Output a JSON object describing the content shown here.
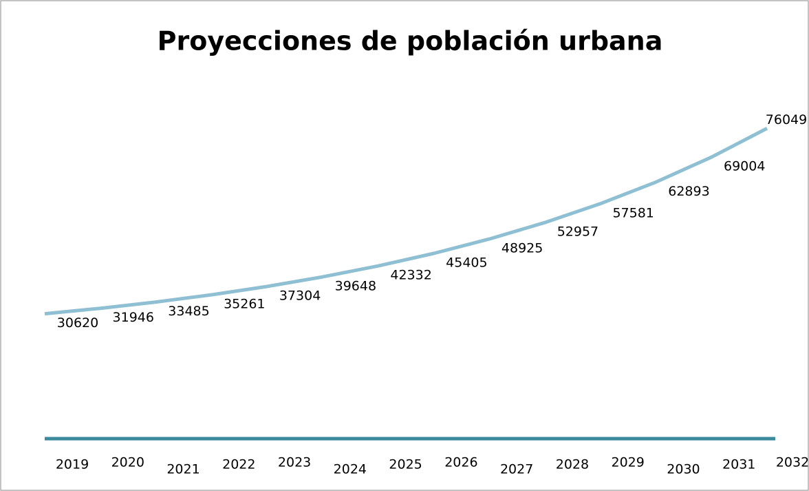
{
  "chart_data": {
    "type": "line",
    "title": "Proyecciones de población urbana",
    "categories": [
      "2019",
      "2020",
      "2021",
      "2022",
      "2023",
      "2024",
      "2025",
      "2026",
      "2027",
      "2028",
      "2029",
      "2030",
      "2031",
      "2032"
    ],
    "values": [
      30620,
      31946,
      33485,
      35261,
      37304,
      39648,
      42332,
      45405,
      48925,
      52957,
      57581,
      62893,
      69004,
      76049
    ],
    "color": "#8fbfd3",
    "axis_color": "#3b8a9b",
    "ylim": [
      0,
      80000
    ]
  }
}
